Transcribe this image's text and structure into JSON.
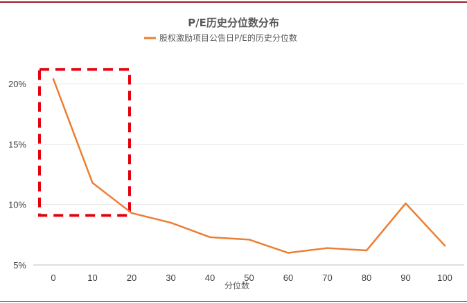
{
  "colors": {
    "line": "#ed7d31",
    "highlight": "#e3000f",
    "grid": "#e6e6e6",
    "axis": "#bfbfbf",
    "rule": "#9b1c28"
  },
  "chart_data": {
    "type": "line",
    "title": "P/E历史分位数分布",
    "xlabel": "分位数",
    "ylabel": "",
    "x": [
      0,
      10,
      20,
      30,
      40,
      50,
      60,
      70,
      80,
      90,
      100
    ],
    "x_tick_labels": [
      "0",
      "10",
      "20",
      "30",
      "40",
      "50",
      "60",
      "70",
      "80",
      "90",
      "100"
    ],
    "y_ticks": [
      5,
      10,
      15,
      20
    ],
    "y_tick_labels": [
      "5%",
      "10%",
      "15%",
      "20%"
    ],
    "ylim": [
      5,
      21.5
    ],
    "grid": true,
    "legend_position": "top",
    "series": [
      {
        "name": "股权激励项目公告日P/E的历史分位数",
        "values": [
          20.4,
          11.8,
          9.3,
          8.5,
          7.3,
          7.1,
          6.0,
          6.4,
          6.2,
          10.1,
          6.6
        ]
      }
    ],
    "highlight_box": {
      "x_range": [
        0,
        20
      ],
      "y_range": [
        9.1,
        21.2
      ],
      "style": "dashed"
    }
  }
}
